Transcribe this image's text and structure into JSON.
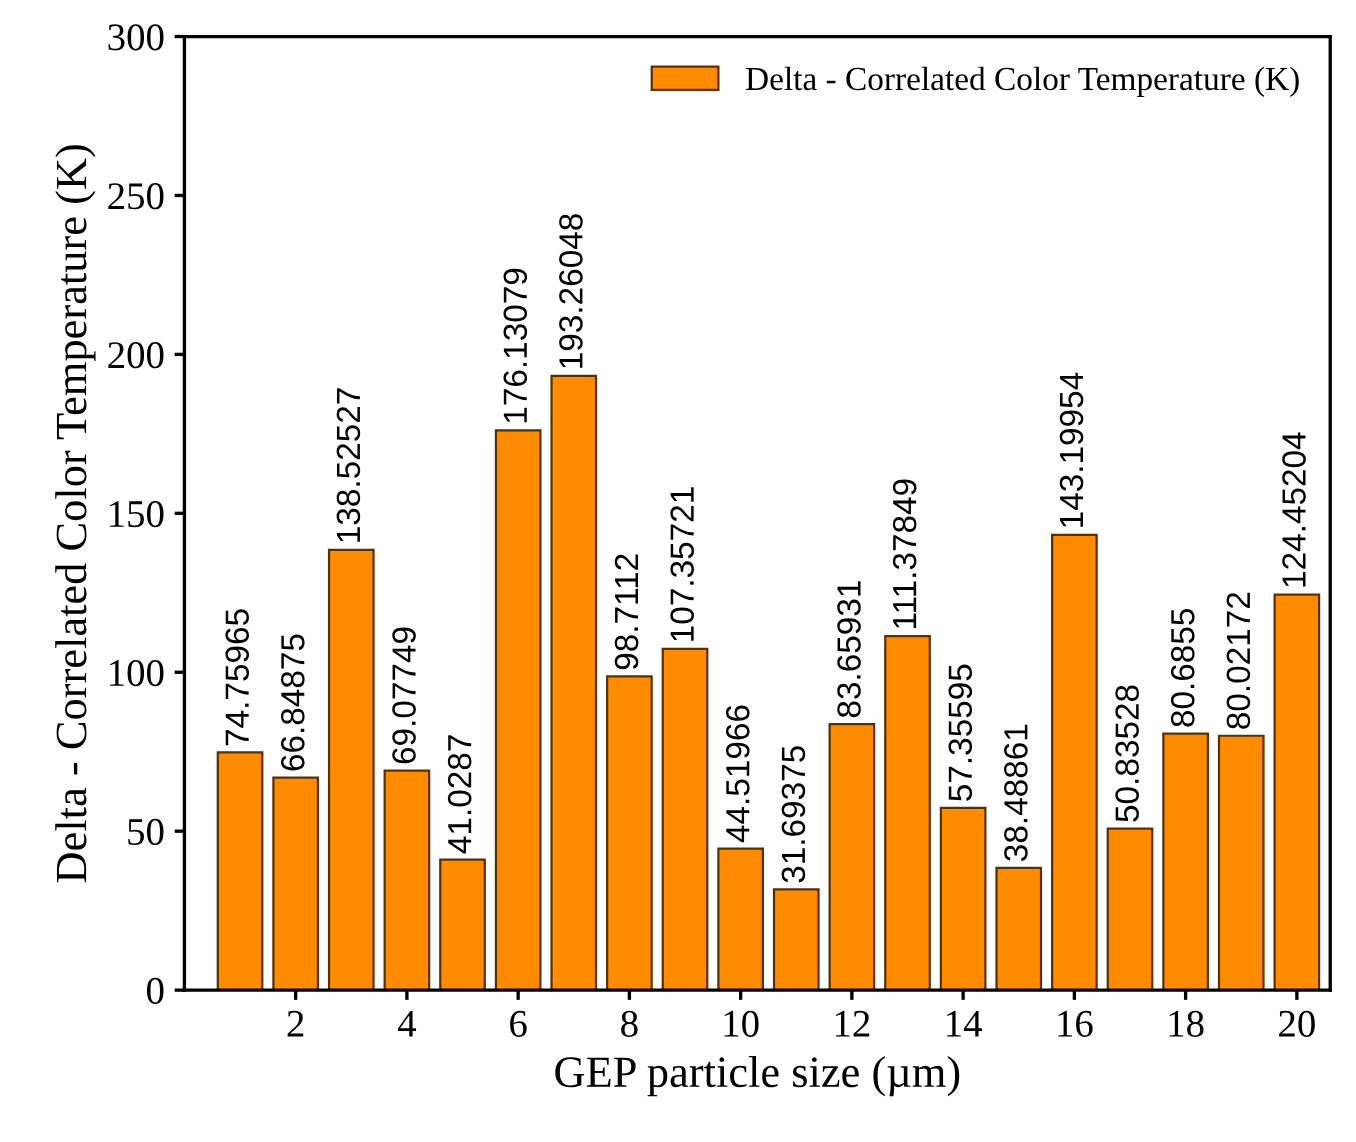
{
  "chart_data": {
    "type": "bar",
    "xlabel": "GEP particle size (µm)",
    "ylabel": "Delta - Correlated Color Temperature (K)",
    "x": [
      1,
      2,
      3,
      4,
      5,
      6,
      7,
      8,
      9,
      10,
      11,
      12,
      13,
      14,
      15,
      16,
      17,
      18,
      19,
      20
    ],
    "series": [
      {
        "name": "Delta - Correlated Color Temperature (K)",
        "color": "#ff8c00",
        "values": [
          74.75965,
          66.84875,
          138.52527,
          69.07749,
          41.0287,
          176.13079,
          193.26048,
          98.7112,
          107.35721,
          44.51966,
          31.69375,
          83.65931,
          111.37849,
          57.35595,
          38.48861,
          143.19954,
          50.83528,
          80.6855,
          80.02172,
          124.45204
        ]
      }
    ],
    "value_labels": [
      "74.75965",
      "66.84875",
      "138.52527",
      "69.07749",
      "41.0287",
      "176.13079",
      "193.26048",
      "98.7112",
      "107.35721",
      "44.51966",
      "31.69375",
      "83.65931",
      "111.37849",
      "57.35595",
      "38.48861",
      "143.19954",
      "50.83528",
      "80.6855",
      "80.02172",
      "124.45204"
    ],
    "xlim": [
      0,
      20.6
    ],
    "xticks": [
      2,
      4,
      6,
      8,
      10,
      12,
      14,
      16,
      18,
      20
    ],
    "ylim": [
      0,
      300
    ],
    "yticks": [
      0,
      50,
      100,
      150,
      200,
      250,
      300
    ],
    "grid": false,
    "legend": "top right"
  }
}
